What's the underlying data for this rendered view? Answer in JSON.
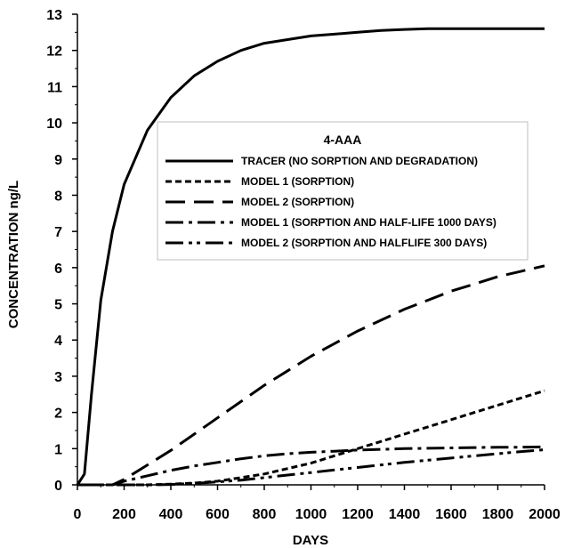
{
  "chart_data": {
    "type": "line",
    "title": "",
    "xlabel": "DAYS",
    "ylabel": "CONCENTRATION ng/L",
    "xlim": [
      0,
      2000
    ],
    "ylim": [
      0,
      13
    ],
    "x_ticks": [
      0,
      200,
      400,
      600,
      800,
      1000,
      1200,
      1400,
      1600,
      1800,
      2000
    ],
    "y_ticks": [
      0,
      1,
      2,
      3,
      4,
      5,
      6,
      7,
      8,
      9,
      10,
      11,
      12,
      13
    ],
    "grid": false,
    "legend_title": "4-AAA",
    "legend_position": "center-right",
    "series": [
      {
        "name": "TRACER (NO SORPTION AND DEGRADATION)",
        "style": "solid",
        "color": "#000000",
        "x": [
          0,
          30,
          60,
          100,
          150,
          200,
          300,
          400,
          500,
          600,
          700,
          800,
          900,
          1000,
          1100,
          1200,
          1300,
          1400,
          1500,
          1600,
          1800,
          2000
        ],
        "y": [
          0,
          0.3,
          2.5,
          5.1,
          7.0,
          8.3,
          9.8,
          10.7,
          11.3,
          11.7,
          12.0,
          12.2,
          12.3,
          12.4,
          12.45,
          12.5,
          12.55,
          12.58,
          12.6,
          12.6,
          12.6,
          12.6
        ]
      },
      {
        "name": "MODEL 1 (SORPTION)",
        "style": "short-dash",
        "color": "#000000",
        "x": [
          0,
          200,
          300,
          400,
          500,
          600,
          700,
          800,
          900,
          1000,
          1100,
          1200,
          1300,
          1400,
          1500,
          1600,
          1700,
          1800,
          1900,
          2000
        ],
        "y": [
          0,
          0,
          0,
          0.02,
          0.05,
          0.1,
          0.2,
          0.3,
          0.45,
          0.6,
          0.8,
          1.0,
          1.2,
          1.4,
          1.6,
          1.8,
          2.0,
          2.2,
          2.4,
          2.6
        ]
      },
      {
        "name": "MODEL 2 (SORPTION)",
        "style": "long-dash",
        "color": "#000000",
        "x": [
          0,
          150,
          200,
          300,
          400,
          500,
          600,
          700,
          800,
          900,
          1000,
          1100,
          1200,
          1300,
          1400,
          1500,
          1600,
          1700,
          1800,
          1900,
          2000
        ],
        "y": [
          0,
          0,
          0.15,
          0.55,
          0.95,
          1.4,
          1.85,
          2.3,
          2.75,
          3.15,
          3.55,
          3.9,
          4.25,
          4.55,
          4.85,
          5.1,
          5.35,
          5.55,
          5.75,
          5.9,
          6.05
        ]
      },
      {
        "name": "MODEL 1 (SORPTION AND HALF-LIFE 1000 DAYS)",
        "style": "dash-dot",
        "color": "#000000",
        "x": [
          0,
          150,
          200,
          300,
          400,
          500,
          600,
          700,
          800,
          900,
          1000,
          1100,
          1200,
          1300,
          1400,
          1500,
          1600,
          1700,
          1800,
          1900,
          2000
        ],
        "y": [
          0,
          0,
          0.1,
          0.25,
          0.4,
          0.52,
          0.62,
          0.72,
          0.8,
          0.86,
          0.9,
          0.93,
          0.96,
          0.98,
          1.0,
          1.01,
          1.02,
          1.03,
          1.04,
          1.04,
          1.05
        ]
      },
      {
        "name": "MODEL 2 (SORPTION AND HALFLIFE 300 DAYS)",
        "style": "dash-dot-dot",
        "color": "#000000",
        "x": [
          0,
          300,
          400,
          500,
          600,
          700,
          800,
          900,
          1000,
          1100,
          1200,
          1300,
          1400,
          1500,
          1600,
          1700,
          1800,
          1900,
          2000
        ],
        "y": [
          0,
          0,
          0.01,
          0.04,
          0.08,
          0.13,
          0.2,
          0.27,
          0.34,
          0.41,
          0.48,
          0.55,
          0.62,
          0.68,
          0.74,
          0.8,
          0.86,
          0.92,
          0.97
        ]
      }
    ]
  }
}
